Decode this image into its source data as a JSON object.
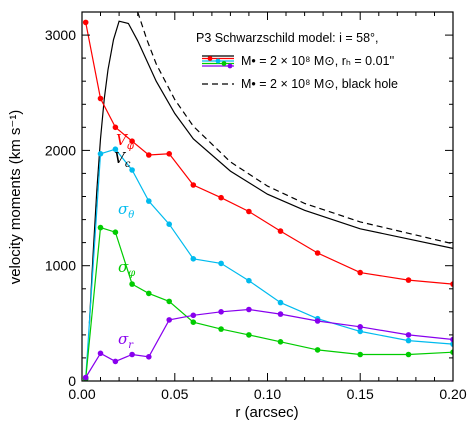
{
  "chart_data": {
    "type": "line",
    "xlabel": "r (arcsec)",
    "ylabel": "velocity moments (km s⁻¹)",
    "xlim": [
      0,
      0.2
    ],
    "ylim": [
      0,
      3200
    ],
    "xticks": [
      0,
      0.05,
      0.1,
      0.15,
      0.2
    ],
    "xtick_labels": [
      "0.00",
      "0.05",
      "0.10",
      "0.15",
      "0.20"
    ],
    "yticks": [
      0,
      1000,
      2000,
      3000
    ],
    "ytick_labels": [
      "0",
      "1000",
      "2000",
      "3000"
    ],
    "legend": {
      "position": "top-right",
      "title": "P3 Schwarzschild model: i = 58°,",
      "entries": [
        "M• = 2 × 10⁸ M⊙, rₕ = 0.01''",
        "M• = 2 × 10⁸ M⊙, black hole"
      ]
    },
    "curves": [
      {
        "label": "Vc",
        "style": "solid",
        "color": "#000000",
        "x": [
          0.004,
          0.006,
          0.008,
          0.01,
          0.012,
          0.014,
          0.017,
          0.02,
          0.025,
          0.03,
          0.04,
          0.05,
          0.06,
          0.08,
          0.1,
          0.12,
          0.15,
          0.2
        ],
        "y": [
          500,
          1100,
          1650,
          2100,
          2450,
          2700,
          2960,
          3120,
          3100,
          2950,
          2600,
          2320,
          2100,
          1820,
          1620,
          1480,
          1320,
          1150
        ]
      },
      {
        "label": "",
        "style": "dashed",
        "color": "#000000",
        "x": [
          0.03,
          0.035,
          0.04,
          0.05,
          0.06,
          0.08,
          0.1,
          0.12,
          0.15,
          0.2
        ],
        "y": [
          3200,
          2960,
          2750,
          2440,
          2210,
          1900,
          1690,
          1540,
          1380,
          1190
        ]
      }
    ],
    "series": [
      {
        "name": "Vφ",
        "color": "#ff0000",
        "x": [
          0.002,
          0.01,
          0.018,
          0.027,
          0.036,
          0.047,
          0.06,
          0.075,
          0.09,
          0.107,
          0.127,
          0.15,
          0.176,
          0.2
        ],
        "y": [
          3110,
          2450,
          2200,
          2080,
          1960,
          1970,
          1700,
          1590,
          1470,
          1300,
          1110,
          940,
          875,
          840
        ]
      },
      {
        "name": "σθ",
        "color": "#00bbee",
        "x": [
          0.002,
          0.01,
          0.018,
          0.027,
          0.036,
          0.047,
          0.06,
          0.075,
          0.09,
          0.107,
          0.127,
          0.15,
          0.176,
          0.2
        ],
        "y": [
          20,
          1970,
          2010,
          1830,
          1560,
          1360,
          1060,
          1020,
          870,
          680,
          540,
          430,
          350,
          320
        ]
      },
      {
        "name": "σφ",
        "color": "#00cc00",
        "x": [
          0.002,
          0.01,
          0.018,
          0.027,
          0.036,
          0.047,
          0.06,
          0.075,
          0.09,
          0.107,
          0.127,
          0.15,
          0.176,
          0.2
        ],
        "y": [
          20,
          1330,
          1290,
          840,
          760,
          690,
          510,
          450,
          400,
          340,
          270,
          230,
          230,
          250
        ]
      },
      {
        "name": "σr",
        "color": "#8800ee",
        "x": [
          0.002,
          0.01,
          0.018,
          0.027,
          0.036,
          0.047,
          0.06,
          0.075,
          0.09,
          0.107,
          0.127,
          0.15,
          0.176,
          0.2
        ],
        "y": [
          30,
          240,
          170,
          230,
          210,
          530,
          570,
          600,
          620,
          580,
          520,
          470,
          400,
          360
        ]
      }
    ]
  }
}
